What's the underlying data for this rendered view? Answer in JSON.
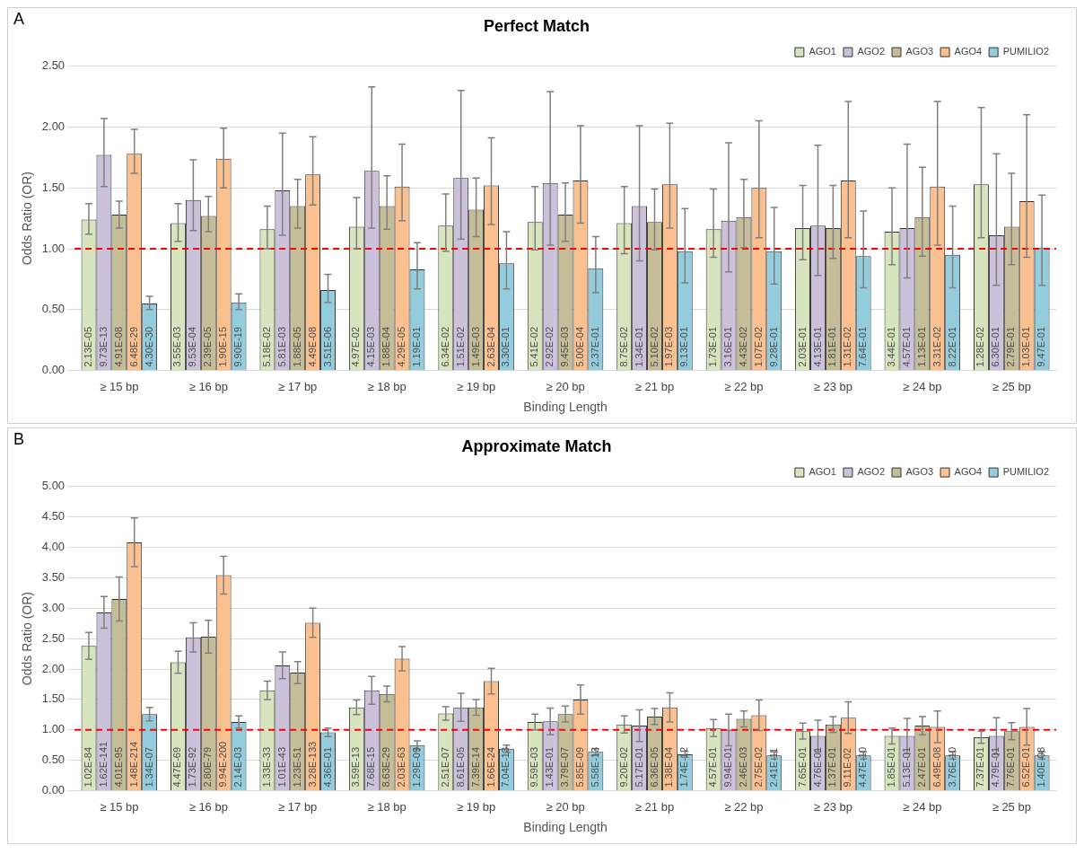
{
  "chart_data": [
    {
      "type": "bar",
      "title": "Perfect Match",
      "xlabel": "Binding Length",
      "ylabel": "Odds Ratio (OR)",
      "annotations": [
        "A",
        {
          "text": "2.13E-05",
          "x": "≥ 15 bp",
          "y": 0
        },
        {
          "text": "9.73E-13",
          "x": "≥ 15 bp",
          "y": 0
        },
        {
          "text": "4.91E-08",
          "x": "≥ 15 bp",
          "y": 0
        },
        {
          "text": "6.48E-29",
          "x": "≥ 15 bp",
          "y": 0
        },
        {
          "text": "4.30E-30",
          "x": "≥ 15 bp",
          "y": 0
        },
        {
          "text": "3.55E-03",
          "x": "≥ 16 bp",
          "y": 0
        },
        {
          "text": "9.53E-04",
          "x": "≥ 16 bp",
          "y": 0
        },
        {
          "text": "2.39E-05",
          "x": "≥ 16 bp",
          "y": 0
        },
        {
          "text": "1.90E-15",
          "x": "≥ 16 bp",
          "y": 0
        },
        {
          "text": "9.90E-19",
          "x": "≥ 16 bp",
          "y": 0
        },
        {
          "text": "5.18E-02",
          "x": "≥ 17 bp",
          "y": 0
        },
        {
          "text": "5.81E-03",
          "x": "≥ 17 bp",
          "y": 0
        },
        {
          "text": "1.88E-05",
          "x": "≥ 17 bp",
          "y": 0
        },
        {
          "text": "4.49E-08",
          "x": "≥ 17 bp",
          "y": 0
        },
        {
          "text": "3.51E-06",
          "x": "≥ 17 bp",
          "y": 0
        },
        {
          "text": "4.97E-02",
          "x": "≥ 18 bp",
          "y": 0
        },
        {
          "text": "4.15E-03",
          "x": "≥ 18 bp",
          "y": 0
        },
        {
          "text": "1.88E-04",
          "x": "≥ 18 bp",
          "y": 0
        },
        {
          "text": "4.29E-05",
          "x": "≥ 18 bp",
          "y": 0
        },
        {
          "text": "1.19E-01",
          "x": "≥ 18 bp",
          "y": 0
        },
        {
          "text": "6.34E-02",
          "x": "≥ 19 bp",
          "y": 0
        },
        {
          "text": "1.51E-02",
          "x": "≥ 19 bp",
          "y": 0
        },
        {
          "text": "1.49E-03",
          "x": "≥ 19 bp",
          "y": 0
        },
        {
          "text": "2.63E-04",
          "x": "≥ 19 bp",
          "y": 0
        },
        {
          "text": "3.30E-01",
          "x": "≥ 19 bp",
          "y": 0
        },
        {
          "text": "5.41E-02",
          "x": "≥ 20 bp",
          "y": 0
        },
        {
          "text": "2.92E-02",
          "x": "≥ 20 bp",
          "y": 0
        },
        {
          "text": "9.45E-03",
          "x": "≥ 20 bp",
          "y": 0
        },
        {
          "text": "5.00E-04",
          "x": "≥ 20 bp",
          "y": 0
        },
        {
          "text": "2.37E-01",
          "x": "≥ 20 bp",
          "y": 0
        },
        {
          "text": "8.75E-02",
          "x": "≥ 21 bp",
          "y": 0
        },
        {
          "text": "1.34E-01",
          "x": "≥ 21 bp",
          "y": 0
        },
        {
          "text": "5.10E-02",
          "x": "≥ 21 bp",
          "y": 0
        },
        {
          "text": "1.97E-03",
          "x": "≥ 21 bp",
          "y": 0
        },
        {
          "text": "9.13E-01",
          "x": "≥ 21 bp",
          "y": 0
        },
        {
          "text": "1.73E-01",
          "x": "≥ 22 bp",
          "y": 0
        },
        {
          "text": "3.16E-01",
          "x": "≥ 22 bp",
          "y": 0
        },
        {
          "text": "4.43E-02",
          "x": "≥ 22 bp",
          "y": 0
        },
        {
          "text": "1.07E-02",
          "x": "≥ 22 bp",
          "y": 0
        },
        {
          "text": "9.28E-01",
          "x": "≥ 22 bp",
          "y": 0
        },
        {
          "text": "2.03E-01",
          "x": "≥ 23 bp",
          "y": 0
        },
        {
          "text": "4.13E-01",
          "x": "≥ 23 bp",
          "y": 0
        },
        {
          "text": "1.81E-01",
          "x": "≥ 23 bp",
          "y": 0
        },
        {
          "text": "1.31E-02",
          "x": "≥ 23 bp",
          "y": 0
        },
        {
          "text": "7.64E-01",
          "x": "≥ 23 bp",
          "y": 0
        },
        {
          "text": "3.44E-01",
          "x": "≥ 24 bp",
          "y": 0
        },
        {
          "text": "4.57E-01",
          "x": "≥ 24 bp",
          "y": 0
        },
        {
          "text": "1.13E-01",
          "x": "≥ 24 bp",
          "y": 0
        },
        {
          "text": "3.31E-02",
          "x": "≥ 24 bp",
          "y": 0
        },
        {
          "text": "8.22E-01",
          "x": "≥ 24 bp",
          "y": 0
        },
        {
          "text": "1.28E-02",
          "x": "≥ 25 bp",
          "y": 0
        },
        {
          "text": "6.30E-01",
          "x": "≥ 25 bp",
          "y": 0
        },
        {
          "text": "2.79E-01",
          "x": "≥ 25 bp",
          "y": 0
        },
        {
          "text": "1.03E-01",
          "x": "≥ 25 bp",
          "y": 0
        },
        {
          "text": "9.47E-01",
          "x": "≥ 25 bp",
          "y": 0
        }
      ],
      "categories": [
        "≥ 15 bp",
        "≥ 16 bp",
        "≥ 17 bp",
        "≥ 18 bp",
        "≥ 19 bp",
        "≥ 20 bp",
        "≥ 21 bp",
        "≥ 22 bp",
        "≥ 23 bp",
        "≥ 24 bp",
        "≥ 25 bp"
      ],
      "ylim": [
        0,
        2.5
      ],
      "yticks": [
        {
          "value": 0,
          "label": "0.00"
        },
        {
          "value": 0.5,
          "label": "0.50"
        },
        {
          "value": 1,
          "label": "1.00"
        },
        {
          "value": 1.5,
          "label": "1.50"
        },
        {
          "value": 2,
          "label": "2.00"
        },
        {
          "value": 2.5,
          "label": "2.50"
        }
      ],
      "grid": "y",
      "legend": "top right",
      "ref_lines": [
        {
          "axis": "y",
          "value": 1,
          "color": "#ff0000",
          "line_style": "dashed"
        }
      ],
      "series": [
        {
          "name": "AGO1",
          "color": "#d7e4bd",
          "values": [
            1.24,
            1.21,
            1.16,
            1.18,
            1.19,
            1.22,
            1.21,
            1.16,
            1.17,
            1.14,
            1.53
          ],
          "errors": [
            [
              1.12,
              1.37
            ],
            [
              1.06,
              1.37
            ],
            [
              1.0,
              1.35
            ],
            [
              1.0,
              1.42
            ],
            [
              0.98,
              1.45
            ],
            [
              0.99,
              1.51
            ],
            [
              0.96,
              1.51
            ],
            [
              0.93,
              1.49
            ],
            [
              0.91,
              1.52
            ],
            [
              0.87,
              1.5
            ],
            [
              1.09,
              2.16
            ]
          ]
        },
        {
          "name": "AGO2",
          "color": "#ccc1da",
          "values": [
            1.77,
            1.4,
            1.48,
            1.64,
            1.58,
            1.54,
            1.35,
            1.23,
            1.19,
            1.17,
            1.11
          ],
          "errors": [
            [
              1.51,
              2.07
            ],
            [
              1.15,
              1.73
            ],
            [
              1.11,
              1.95
            ],
            [
              1.17,
              2.33
            ],
            [
              1.08,
              2.3
            ],
            [
              1.03,
              2.29
            ],
            [
              0.9,
              2.01
            ],
            [
              0.81,
              1.87
            ],
            [
              0.78,
              1.85
            ],
            [
              0.76,
              1.86
            ],
            [
              0.7,
              1.78
            ]
          ]
        },
        {
          "name": "AGO3",
          "color": "#c4bd97",
          "values": [
            1.28,
            1.27,
            1.35,
            1.35,
            1.32,
            1.28,
            1.22,
            1.26,
            1.17,
            1.26,
            1.18
          ],
          "errors": [
            [
              1.17,
              1.39
            ],
            [
              1.14,
              1.43
            ],
            [
              1.17,
              1.57
            ],
            [
              1.16,
              1.6
            ],
            [
              1.1,
              1.58
            ],
            [
              1.06,
              1.54
            ],
            [
              0.99,
              1.49
            ],
            [
              1.01,
              1.57
            ],
            [
              0.92,
              1.52
            ],
            [
              0.94,
              1.67
            ],
            [
              0.87,
              1.62
            ]
          ]
        },
        {
          "name": "AGO4",
          "color": "#fac090",
          "values": [
            1.78,
            1.74,
            1.61,
            1.51,
            1.52,
            1.56,
            1.53,
            1.5,
            1.56,
            1.51,
            1.39
          ],
          "errors": [
            [
              1.62,
              1.98
            ],
            [
              1.5,
              1.99
            ],
            [
              1.36,
              1.92
            ],
            [
              1.23,
              1.86
            ],
            [
              1.2,
              1.91
            ],
            [
              1.21,
              2.01
            ],
            [
              1.17,
              2.03
            ],
            [
              1.09,
              2.05
            ],
            [
              1.09,
              2.21
            ],
            [
              1.03,
              2.21
            ],
            [
              0.93,
              2.1
            ]
          ]
        },
        {
          "name": "PUMILIO2",
          "color": "#93cddd",
          "values": [
            0.55,
            0.56,
            0.66,
            0.83,
            0.88,
            0.84,
            0.98,
            0.98,
            0.94,
            0.95,
            1.01
          ],
          "errors": [
            [
              0.5,
              0.61
            ],
            [
              0.5,
              0.63
            ],
            [
              0.56,
              0.79
            ],
            [
              0.67,
              1.05
            ],
            [
              0.67,
              1.14
            ],
            [
              0.64,
              1.1
            ],
            [
              0.72,
              1.33
            ],
            [
              0.71,
              1.34
            ],
            [
              0.68,
              1.31
            ],
            [
              0.68,
              1.35
            ],
            [
              0.7,
              1.44
            ]
          ]
        }
      ]
    },
    {
      "type": "bar",
      "title": "Approximate Match",
      "xlabel": "Binding Length",
      "ylabel": "Odds Ratio (OR)",
      "annotations": [
        "B",
        {
          "text": "1.02E-84",
          "x": "≥ 15 bp",
          "y": 0
        },
        {
          "text": "1.62E-141",
          "x": "≥ 15 bp",
          "y": 0
        },
        {
          "text": "4.01E-95",
          "x": "≥ 15 bp",
          "y": 0
        },
        {
          "text": "1.48E-214",
          "x": "≥ 15 bp",
          "y": 0
        },
        {
          "text": "1.34E-07",
          "x": "≥ 15 bp",
          "y": 0
        },
        {
          "text": "4.47E-69",
          "x": "≥ 16 bp",
          "y": 0
        },
        {
          "text": "1.73E-92",
          "x": "≥ 16 bp",
          "y": 0
        },
        {
          "text": "2.80E-79",
          "x": "≥ 16 bp",
          "y": 0
        },
        {
          "text": "9.94E-200",
          "x": "≥ 16 bp",
          "y": 0
        },
        {
          "text": "2.14E-03",
          "x": "≥ 16 bp",
          "y": 0
        },
        {
          "text": "1.33E-33",
          "x": "≥ 17 bp",
          "y": 0
        },
        {
          "text": "1.01E-43",
          "x": "≥ 17 bp",
          "y": 0
        },
        {
          "text": "1.23E-51",
          "x": "≥ 17 bp",
          "y": 0
        },
        {
          "text": "3.28E-133",
          "x": "≥ 17 bp",
          "y": 0
        },
        {
          "text": "4.36E-01",
          "x": "≥ 17 bp",
          "y": 0
        },
        {
          "text": "3.59E-13",
          "x": "≥ 18 bp",
          "y": 0
        },
        {
          "text": "7.68E-15",
          "x": "≥ 18 bp",
          "y": 0
        },
        {
          "text": "8.63E-29",
          "x": "≥ 18 bp",
          "y": 0
        },
        {
          "text": "2.03E-63",
          "x": "≥ 18 bp",
          "y": 0
        },
        {
          "text": "1.29E-09",
          "x": "≥ 18 bp",
          "y": 0
        },
        {
          "text": "2.51E-07",
          "x": "≥ 19 bp",
          "y": 0
        },
        {
          "text": "8.61E-05",
          "x": "≥ 19 bp",
          "y": 0
        },
        {
          "text": "7.39E-14",
          "x": "≥ 19 bp",
          "y": 0
        },
        {
          "text": "1.66E-24",
          "x": "≥ 19 bp",
          "y": 0
        },
        {
          "text": "7.04E-13",
          "x": "≥ 19 bp",
          "y": 0
        },
        {
          "text": "9.59E-03",
          "x": "≥ 20 bp",
          "y": 0
        },
        {
          "text": "1.43E-01",
          "x": "≥ 20 bp",
          "y": 0
        },
        {
          "text": "3.79E-07",
          "x": "≥ 20 bp",
          "y": 0
        },
        {
          "text": "5.85E-09",
          "x": "≥ 20 bp",
          "y": 0
        },
        {
          "text": "5.58E-13",
          "x": "≥ 20 bp",
          "y": 0
        },
        {
          "text": "9.20E-02",
          "x": "≥ 21 bp",
          "y": 0
        },
        {
          "text": "5.17E-01",
          "x": "≥ 21 bp",
          "y": 0
        },
        {
          "text": "6.36E-05",
          "x": "≥ 21 bp",
          "y": 0
        },
        {
          "text": "1.38E-04",
          "x": "≥ 21 bp",
          "y": 0
        },
        {
          "text": "1.74E-12",
          "x": "≥ 21 bp",
          "y": 0
        },
        {
          "text": "4.57E-01",
          "x": "≥ 22 bp",
          "y": 0
        },
        {
          "text": "9.94E-01",
          "x": "≥ 22 bp",
          "y": 0
        },
        {
          "text": "2.46E-03",
          "x": "≥ 22 bp",
          "y": 0
        },
        {
          "text": "2.75E-02",
          "x": "≥ 22 bp",
          "y": 0
        },
        {
          "text": "2.41E-11",
          "x": "≥ 22 bp",
          "y": 0
        },
        {
          "text": "7.65E-01",
          "x": "≥ 23 bp",
          "y": 0
        },
        {
          "text": "4.76E-01",
          "x": "≥ 23 bp",
          "y": 0
        },
        {
          "text": "1.37E-01",
          "x": "≥ 23 bp",
          "y": 0
        },
        {
          "text": "9.11E-02",
          "x": "≥ 23 bp",
          "y": 0
        },
        {
          "text": "4.47E-10",
          "x": "≥ 23 bp",
          "y": 0
        },
        {
          "text": "1.85E-01",
          "x": "≥ 24 bp",
          "y": 0
        },
        {
          "text": "5.13E-01",
          "x": "≥ 24 bp",
          "y": 0
        },
        {
          "text": "2.47E-01",
          "x": "≥ 24 bp",
          "y": 0
        },
        {
          "text": "6.49E-08",
          "x": "≥ 24 bp",
          "y": 0
        },
        {
          "text": "3.76E-10",
          "x": "≥ 24 bp",
          "y": 0
        },
        {
          "text": "7.37E-01",
          "x": "≥ 25 bp",
          "y": 0
        },
        {
          "text": "4.79E-01",
          "x": "≥ 25 bp",
          "y": 0
        },
        {
          "text": "7.76E-01",
          "x": "≥ 25 bp",
          "y": 0
        },
        {
          "text": "6.52E-01",
          "x": "≥ 25 bp",
          "y": 0
        },
        {
          "text": "1.40E-08",
          "x": "≥ 25 bp",
          "y": 0
        }
      ],
      "categories": [
        "≥ 15 bp",
        "≥ 16 bp",
        "≥ 17 bp",
        "≥ 18 bp",
        "≥ 19 bp",
        "≥ 20 bp",
        "≥ 21 bp",
        "≥ 22 bp",
        "≥ 23 bp",
        "≥ 24 bp",
        "≥ 25 bp"
      ],
      "ylim": [
        0,
        5
      ],
      "yticks": [
        {
          "value": 0,
          "label": "0.00"
        },
        {
          "value": 0.5,
          "label": "0.50"
        },
        {
          "value": 1,
          "label": "1.00"
        },
        {
          "value": 1.5,
          "label": "1.50"
        },
        {
          "value": 2,
          "label": "2.00"
        },
        {
          "value": 2.5,
          "label": "2.50"
        },
        {
          "value": 3,
          "label": "3.00"
        },
        {
          "value": 3.5,
          "label": "3.50"
        },
        {
          "value": 4,
          "label": "4.00"
        },
        {
          "value": 4.5,
          "label": "4.50"
        },
        {
          "value": 5,
          "label": "5.00"
        }
      ],
      "grid": "y",
      "legend": "top right",
      "ref_lines": [
        {
          "axis": "y",
          "value": 1,
          "color": "#ff0000",
          "line_style": "dashed"
        }
      ],
      "series": [
        {
          "name": "AGO1",
          "color": "#d7e4bd",
          "values": [
            2.38,
            2.11,
            1.65,
            1.37,
            1.27,
            1.13,
            1.09,
            1.03,
            0.98,
            0.9,
            0.88
          ],
          "errors": [
            0.22,
            0.18,
            0.15,
            0.12,
            0.11,
            0.13,
            0.14,
            0.14,
            0.13,
            0.13,
            0.1
          ]
        },
        {
          "name": "AGO2",
          "color": "#ccc1da",
          "values": [
            2.93,
            2.52,
            2.06,
            1.65,
            1.37,
            1.14,
            1.07,
            1.0,
            0.9,
            0.9,
            0.9
          ],
          "errors": [
            0.26,
            0.24,
            0.22,
            0.23,
            0.23,
            0.22,
            0.26,
            0.26,
            0.26,
            0.29,
            0.3
          ]
        },
        {
          "name": "AGO3",
          "color": "#c4bd97",
          "values": [
            3.15,
            2.53,
            1.94,
            1.59,
            1.37,
            1.26,
            1.22,
            1.18,
            1.09,
            1.07,
            0.98
          ],
          "errors": [
            0.36,
            0.27,
            0.18,
            0.13,
            0.13,
            0.13,
            0.13,
            0.13,
            0.13,
            0.15,
            0.14
          ]
        },
        {
          "name": "AGO4",
          "color": "#fac090",
          "values": [
            4.08,
            3.54,
            2.76,
            2.17,
            1.8,
            1.5,
            1.37,
            1.24,
            1.2,
            1.05,
            1.05
          ],
          "errors": [
            0.4,
            0.31,
            0.24,
            0.2,
            0.21,
            0.24,
            0.24,
            0.25,
            0.26,
            0.26,
            0.3
          ]
        },
        {
          "name": "PUMILIO2",
          "color": "#93cddd",
          "values": [
            1.26,
            1.13,
            0.96,
            0.75,
            0.69,
            0.64,
            0.6,
            0.58,
            0.58,
            0.58,
            0.58
          ],
          "errors": [
            0.11,
            0.1,
            0.07,
            0.07,
            0.06,
            0.05,
            0.05,
            0.06,
            0.06,
            0.06,
            0.06
          ]
        }
      ]
    }
  ]
}
